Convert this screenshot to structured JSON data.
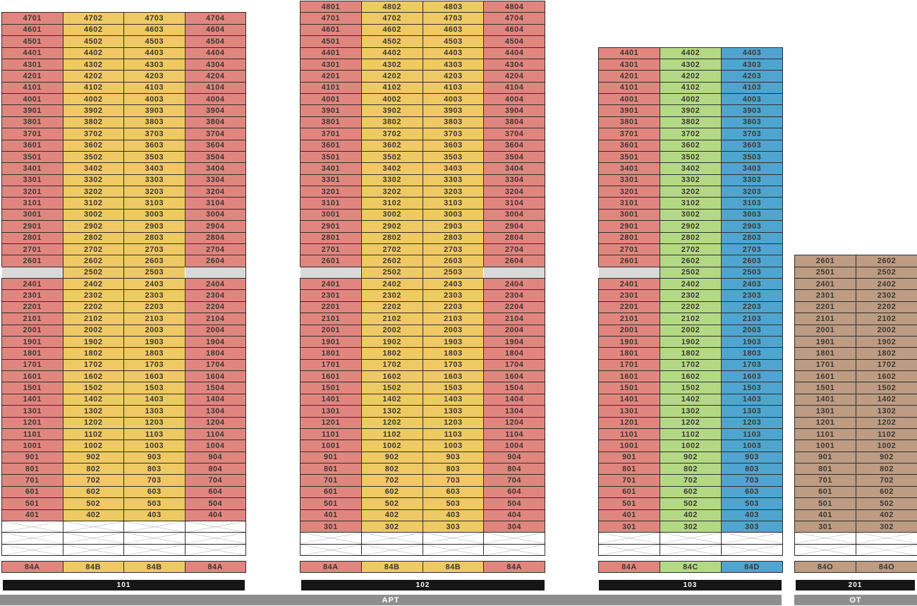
{
  "palette": {
    "red": "#e1867f",
    "yellow": "#efc964",
    "green": "#b4d985",
    "blue": "#4fa5cf",
    "brown": "#bd9c83",
    "gray_empty": "#d9d9d9",
    "border": "#2e2e2e",
    "text": "#3c3733",
    "cross_line": "#4d4d4d",
    "bar_black": "#161616",
    "bar_gray": "#8e8e8e",
    "bar_text": "#ffffff",
    "background": "#ffffff"
  },
  "towers": [
    {
      "id": "101",
      "bar_label": "101",
      "columns": 4,
      "column_colors": [
        "red",
        "yellow",
        "yellow",
        "red"
      ],
      "stack_labels": [
        "84A",
        "84B",
        "84B",
        "84A"
      ],
      "crossed_rows": 3,
      "rows": [
        [
          "4701",
          "4702",
          "4703",
          "4704"
        ],
        [
          "4601",
          "4602",
          "4603",
          "4604"
        ],
        [
          "4501",
          "4502",
          "4503",
          "4504"
        ],
        [
          "4401",
          "4402",
          "4403",
          "4404"
        ],
        [
          "4301",
          "4302",
          "4303",
          "4304"
        ],
        [
          "4201",
          "4202",
          "4203",
          "4204"
        ],
        [
          "4101",
          "4102",
          "4103",
          "4104"
        ],
        [
          "4001",
          "4002",
          "4003",
          "4004"
        ],
        [
          "3901",
          "3902",
          "3903",
          "3904"
        ],
        [
          "3801",
          "3802",
          "3803",
          "3804"
        ],
        [
          "3701",
          "3702",
          "3703",
          "3704"
        ],
        [
          "3601",
          "3602",
          "3603",
          "3604"
        ],
        [
          "3501",
          "3502",
          "3503",
          "3504"
        ],
        [
          "3401",
          "3402",
          "3403",
          "3404"
        ],
        [
          "3301",
          "3302",
          "3303",
          "3304"
        ],
        [
          "3201",
          "3202",
          "3203",
          "3204"
        ],
        [
          "3101",
          "3102",
          "3103",
          "3104"
        ],
        [
          "3001",
          "3002",
          "3003",
          "3004"
        ],
        [
          "2901",
          "2902",
          "2903",
          "2904"
        ],
        [
          "2801",
          "2802",
          "2803",
          "2804"
        ],
        [
          "2701",
          "2702",
          "2703",
          "2704"
        ],
        [
          "2601",
          "2602",
          "2603",
          "2604"
        ],
        [
          "",
          "2502",
          "2503",
          ""
        ],
        [
          "2401",
          "2402",
          "2403",
          "2404"
        ],
        [
          "2301",
          "2302",
          "2303",
          "2304"
        ],
        [
          "2201",
          "2202",
          "2203",
          "2204"
        ],
        [
          "2101",
          "2102",
          "2103",
          "2104"
        ],
        [
          "2001",
          "2002",
          "2003",
          "2004"
        ],
        [
          "1901",
          "1902",
          "1903",
          "1904"
        ],
        [
          "1801",
          "1802",
          "1803",
          "1804"
        ],
        [
          "1701",
          "1702",
          "1703",
          "1704"
        ],
        [
          "1601",
          "1602",
          "1603",
          "1604"
        ],
        [
          "1501",
          "1502",
          "1503",
          "1504"
        ],
        [
          "1401",
          "1402",
          "1403",
          "1404"
        ],
        [
          "1301",
          "1302",
          "1303",
          "1304"
        ],
        [
          "1201",
          "1202",
          "1203",
          "1204"
        ],
        [
          "1101",
          "1102",
          "1103",
          "1104"
        ],
        [
          "1001",
          "1002",
          "1003",
          "1004"
        ],
        [
          "901",
          "902",
          "903",
          "904"
        ],
        [
          "801",
          "802",
          "803",
          "804"
        ],
        [
          "701",
          "702",
          "703",
          "704"
        ],
        [
          "601",
          "602",
          "603",
          "604"
        ],
        [
          "501",
          "502",
          "503",
          "504"
        ],
        [
          "401",
          "402",
          "403",
          "404"
        ]
      ]
    },
    {
      "id": "102",
      "bar_label": "102",
      "columns": 4,
      "column_colors": [
        "red",
        "yellow",
        "yellow",
        "red"
      ],
      "stack_labels": [
        "84A",
        "84B",
        "84B",
        "84A"
      ],
      "crossed_rows": 2,
      "rows": [
        [
          "4801",
          "4802",
          "4803",
          "4804"
        ],
        [
          "4701",
          "4702",
          "4703",
          "4704"
        ],
        [
          "4601",
          "4602",
          "4603",
          "4604"
        ],
        [
          "4501",
          "4502",
          "4503",
          "4504"
        ],
        [
          "4401",
          "4402",
          "4403",
          "4404"
        ],
        [
          "4301",
          "4302",
          "4303",
          "4304"
        ],
        [
          "4201",
          "4202",
          "4203",
          "4204"
        ],
        [
          "4101",
          "4102",
          "4103",
          "4104"
        ],
        [
          "4001",
          "4002",
          "4003",
          "4004"
        ],
        [
          "3901",
          "3902",
          "3903",
          "3904"
        ],
        [
          "3801",
          "3802",
          "3803",
          "3804"
        ],
        [
          "3701",
          "3702",
          "3703",
          "3704"
        ],
        [
          "3601",
          "3602",
          "3603",
          "3604"
        ],
        [
          "3501",
          "3502",
          "3503",
          "3504"
        ],
        [
          "3401",
          "3402",
          "3403",
          "3404"
        ],
        [
          "3301",
          "3302",
          "3303",
          "3304"
        ],
        [
          "3201",
          "3202",
          "3203",
          "3204"
        ],
        [
          "3101",
          "3102",
          "3103",
          "3104"
        ],
        [
          "3001",
          "3002",
          "3003",
          "3004"
        ],
        [
          "2901",
          "2902",
          "2903",
          "2904"
        ],
        [
          "2801",
          "2802",
          "2803",
          "2804"
        ],
        [
          "2701",
          "2702",
          "2703",
          "2704"
        ],
        [
          "2601",
          "2602",
          "2603",
          "2604"
        ],
        [
          "",
          "2502",
          "2503",
          ""
        ],
        [
          "2401",
          "2402",
          "2403",
          "2404"
        ],
        [
          "2301",
          "2302",
          "2303",
          "2304"
        ],
        [
          "2201",
          "2202",
          "2203",
          "2204"
        ],
        [
          "2101",
          "2102",
          "2103",
          "2104"
        ],
        [
          "2001",
          "2002",
          "2003",
          "2004"
        ],
        [
          "1901",
          "1902",
          "1903",
          "1904"
        ],
        [
          "1801",
          "1802",
          "1803",
          "1804"
        ],
        [
          "1701",
          "1702",
          "1703",
          "1704"
        ],
        [
          "1601",
          "1602",
          "1603",
          "1604"
        ],
        [
          "1501",
          "1502",
          "1503",
          "1504"
        ],
        [
          "1401",
          "1402",
          "1403",
          "1404"
        ],
        [
          "1301",
          "1302",
          "1303",
          "1304"
        ],
        [
          "1201",
          "1202",
          "1203",
          "1204"
        ],
        [
          "1101",
          "1102",
          "1103",
          "1104"
        ],
        [
          "1001",
          "1002",
          "1003",
          "1004"
        ],
        [
          "901",
          "902",
          "903",
          "904"
        ],
        [
          "801",
          "802",
          "803",
          "804"
        ],
        [
          "701",
          "702",
          "703",
          "704"
        ],
        [
          "601",
          "602",
          "603",
          "604"
        ],
        [
          "501",
          "502",
          "503",
          "504"
        ],
        [
          "401",
          "402",
          "403",
          "404"
        ],
        [
          "301",
          "302",
          "303",
          "304"
        ]
      ]
    },
    {
      "id": "103",
      "bar_label": "103",
      "columns": 3,
      "column_colors": [
        "red",
        "green",
        "blue"
      ],
      "stack_labels": [
        "84A",
        "84C",
        "84D"
      ],
      "crossed_rows": 2,
      "rows": [
        [
          "4401",
          "4402",
          "4403"
        ],
        [
          "4301",
          "4302",
          "4303"
        ],
        [
          "4201",
          "4202",
          "4203"
        ],
        [
          "4101",
          "4102",
          "4103"
        ],
        [
          "4001",
          "4002",
          "4003"
        ],
        [
          "3901",
          "3902",
          "3903"
        ],
        [
          "3801",
          "3802",
          "3803"
        ],
        [
          "3701",
          "3702",
          "3703"
        ],
        [
          "3601",
          "3602",
          "3603"
        ],
        [
          "3501",
          "3502",
          "3503"
        ],
        [
          "3401",
          "3402",
          "3403"
        ],
        [
          "3301",
          "3302",
          "3303"
        ],
        [
          "3201",
          "3202",
          "3203"
        ],
        [
          "3101",
          "3102",
          "3103"
        ],
        [
          "3001",
          "3002",
          "3003"
        ],
        [
          "2901",
          "2902",
          "2903"
        ],
        [
          "2801",
          "2802",
          "2803"
        ],
        [
          "2701",
          "2702",
          "2703"
        ],
        [
          "2601",
          "2602",
          "2603"
        ],
        [
          "",
          "2502",
          "2503"
        ],
        [
          "2401",
          "2402",
          "2403"
        ],
        [
          "2301",
          "2302",
          "2303"
        ],
        [
          "2201",
          "2202",
          "2203"
        ],
        [
          "2101",
          "2102",
          "2103"
        ],
        [
          "2001",
          "2002",
          "2003"
        ],
        [
          "1901",
          "1902",
          "1903"
        ],
        [
          "1801",
          "1802",
          "1803"
        ],
        [
          "1701",
          "1702",
          "1703"
        ],
        [
          "1601",
          "1602",
          "1603"
        ],
        [
          "1501",
          "1502",
          "1503"
        ],
        [
          "1401",
          "1402",
          "1403"
        ],
        [
          "1301",
          "1302",
          "1303"
        ],
        [
          "1201",
          "1202",
          "1203"
        ],
        [
          "1101",
          "1102",
          "1103"
        ],
        [
          "1001",
          "1002",
          "1003"
        ],
        [
          "901",
          "902",
          "903"
        ],
        [
          "801",
          "802",
          "803"
        ],
        [
          "701",
          "702",
          "703"
        ],
        [
          "601",
          "602",
          "603"
        ],
        [
          "501",
          "502",
          "503"
        ],
        [
          "401",
          "402",
          "403"
        ],
        [
          "301",
          "302",
          "303"
        ]
      ]
    },
    {
      "id": "201",
      "bar_label": "201",
      "columns": 2,
      "column_colors": [
        "brown",
        "brown"
      ],
      "stack_labels": [
        "84O",
        "84O"
      ],
      "crossed_rows": 2,
      "rows": [
        [
          "2601",
          "2602"
        ],
        [
          "2501",
          "2502"
        ],
        [
          "2401",
          "2402"
        ],
        [
          "2301",
          "2302"
        ],
        [
          "2201",
          "2202"
        ],
        [
          "2101",
          "2102"
        ],
        [
          "2001",
          "2002"
        ],
        [
          "1901",
          "1902"
        ],
        [
          "1801",
          "1802"
        ],
        [
          "1701",
          "1702"
        ],
        [
          "1601",
          "1602"
        ],
        [
          "1501",
          "1502"
        ],
        [
          "1401",
          "1402"
        ],
        [
          "1301",
          "1302"
        ],
        [
          "1201",
          "1202"
        ],
        [
          "1101",
          "1102"
        ],
        [
          "1001",
          "1002"
        ],
        [
          "901",
          "902"
        ],
        [
          "801",
          "802"
        ],
        [
          "701",
          "702"
        ],
        [
          "601",
          "602"
        ],
        [
          "501",
          "502"
        ],
        [
          "401",
          "402"
        ],
        [
          "301",
          "302"
        ]
      ]
    }
  ],
  "footer_bars": [
    {
      "label": "APT"
    },
    {
      "label": "OT"
    }
  ]
}
